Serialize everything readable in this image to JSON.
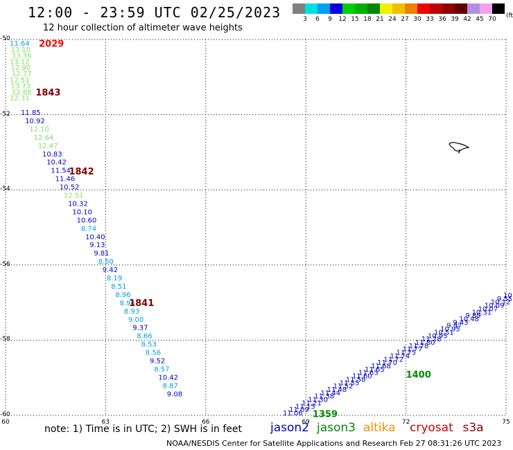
{
  "header": {
    "title": "12:00 - 23:59 UTC 02/25/2023",
    "subtitle": "12 hour collection of altimeter wave heights"
  },
  "legend": {
    "unit": "(ft)",
    "items": [
      {
        "label": "3",
        "color": "#808080"
      },
      {
        "label": "6",
        "color": "#00e0e0"
      },
      {
        "label": "9",
        "color": "#00a0f0"
      },
      {
        "label": "12",
        "color": "#0000e0"
      },
      {
        "label": "15",
        "color": "#00d000"
      },
      {
        "label": "18",
        "color": "#00b000"
      },
      {
        "label": "21",
        "color": "#008800"
      },
      {
        "label": "24",
        "color": "#f0f000"
      },
      {
        "label": "27",
        "color": "#f0c000"
      },
      {
        "label": "30",
        "color": "#f08000"
      },
      {
        "label": "33",
        "color": "#f00000"
      },
      {
        "label": "36",
        "color": "#c00000"
      },
      {
        "label": "39",
        "color": "#900000"
      },
      {
        "label": "42",
        "color": "#600000"
      },
      {
        "label": "45",
        "color": "#b090e0"
      },
      {
        "label": "70",
        "color": "#f0a0f0"
      },
      {
        "label": "",
        "color": "#000000"
      }
    ]
  },
  "axes": {
    "lat_labels": [
      "-50",
      "-52",
      "-54",
      "-56",
      "-58",
      "-60"
    ],
    "lon_labels": [
      "60",
      "63",
      "66",
      "69",
      "72",
      "75"
    ],
    "lat_range": [
      -60,
      -50
    ],
    "lon_range": [
      60,
      75
    ]
  },
  "colors": {
    "jason2": "#0000c0",
    "jason3": "#008800",
    "altika": "#f09000",
    "cryosat": "#d00000",
    "s3a": "#900000",
    "cyan": "#00a0e0",
    "lightgreen": "#80e060",
    "darkred": "#800000",
    "red": "#ff0000"
  },
  "track_labels": [
    {
      "text": "2029",
      "lat": -50.1,
      "lon": 61.0,
      "color": "red"
    },
    {
      "text": "1843",
      "lat": -51.4,
      "lon": 60.9,
      "color": "darkred"
    },
    {
      "text": "1842",
      "lat": -53.5,
      "lon": 61.9,
      "color": "darkred"
    },
    {
      "text": "1841",
      "lat": -57.0,
      "lon": 63.7,
      "color": "darkred"
    },
    {
      "text": "1400",
      "lat": -58.9,
      "lon": 72.0,
      "color": "jason3"
    },
    {
      "text": "1359",
      "lat": -59.95,
      "lon": 69.2,
      "color": "jason3"
    }
  ],
  "track_a": [
    {
      "value": "11.64",
      "color": "cyan"
    },
    {
      "value": "13.10",
      "color": "lightgreen"
    },
    {
      "value": "13.36",
      "color": "lightgreen"
    },
    {
      "value": "13.12",
      "color": "lightgreen"
    },
    {
      "value": "12.90",
      "color": "lightgreen"
    },
    {
      "value": "12.77",
      "color": "lightgreen"
    },
    {
      "value": "12.51",
      "color": "lightgreen"
    },
    {
      "value": "13.73",
      "color": "lightgreen"
    },
    {
      "value": "12.88",
      "color": "lightgreen"
    },
    {
      "value": "12.31",
      "color": "lightgreen"
    },
    {
      "value": "11.85",
      "color": "jason2"
    },
    {
      "value": "10.92",
      "color": "jason2"
    },
    {
      "value": "12.10",
      "color": "lightgreen"
    },
    {
      "value": "12.64",
      "color": "lightgreen"
    },
    {
      "value": "12.47",
      "color": "lightgreen"
    },
    {
      "value": "10.83",
      "color": "jason2"
    },
    {
      "value": "10.42",
      "color": "jason2"
    },
    {
      "value": "11.54",
      "color": "jason2"
    },
    {
      "value": "11.46",
      "color": "jason2"
    },
    {
      "value": "10.52",
      "color": "jason2"
    },
    {
      "value": "12.51",
      "color": "lightgreen"
    },
    {
      "value": "10.32",
      "color": "jason2"
    },
    {
      "value": "10.10",
      "color": "jason2"
    },
    {
      "value": "10.60",
      "color": "jason2"
    },
    {
      "value": "8.74",
      "color": "cyan"
    },
    {
      "value": "10.40",
      "color": "jason2"
    },
    {
      "value": "9.13",
      "color": "jason2"
    },
    {
      "value": "9.81",
      "color": "jason2"
    },
    {
      "value": "8.50",
      "color": "cyan"
    },
    {
      "value": "9.42",
      "color": "jason2"
    },
    {
      "value": "8.19",
      "color": "cyan"
    },
    {
      "value": "8.51",
      "color": "cyan"
    },
    {
      "value": "8.96",
      "color": "cyan"
    },
    {
      "value": "8.94",
      "color": "cyan"
    },
    {
      "value": "8.93",
      "color": "cyan"
    },
    {
      "value": "9.00",
      "color": "cyan"
    },
    {
      "value": "9.37",
      "color": "jason2"
    },
    {
      "value": "8.66",
      "color": "cyan"
    },
    {
      "value": "8.53",
      "color": "cyan"
    },
    {
      "value": "8.56",
      "color": "cyan"
    },
    {
      "value": "9.52",
      "color": "jason2"
    },
    {
      "value": "8.57",
      "color": "cyan"
    },
    {
      "value": "10.42",
      "color": "jason2"
    },
    {
      "value": "8.87",
      "color": "cyan"
    },
    {
      "value": "9.08",
      "color": "jason2"
    }
  ],
  "track_b": [
    "11.06",
    "11.09",
    "11.15",
    "11.21",
    "11.30",
    "11.38",
    "11.44",
    "11.48",
    "11.52",
    "11.55",
    "11.58",
    "11.60",
    "11.63",
    "11.65",
    "11.68",
    "11.70",
    "11.72",
    "11.74",
    "11.75",
    "11.77",
    "11.78",
    "11.80",
    "11.28",
    "10.95",
    "10.51",
    "10.95",
    "9.97",
    "9.43",
    "10.48",
    "9.89",
    "10.31",
    "10.07",
    "10.09",
    "10.12",
    "9.55",
    "10"
  ],
  "footer": {
    "note": "note: 1) Time is in UTC; 2) SWH is in feet",
    "satellites": [
      {
        "name": "jason2",
        "color": "#0000c0"
      },
      {
        "name": "jason3",
        "color": "#008800"
      },
      {
        "name": "altika",
        "color": "#f09000"
      },
      {
        "name": "cryosat",
        "color": "#d00000"
      },
      {
        "name": "s3a",
        "color": "#900000"
      }
    ],
    "credit": "NOAA/NESDIS Center for Satellite Applications and Research    Feb 27 08:31:26 UTC 2023"
  }
}
